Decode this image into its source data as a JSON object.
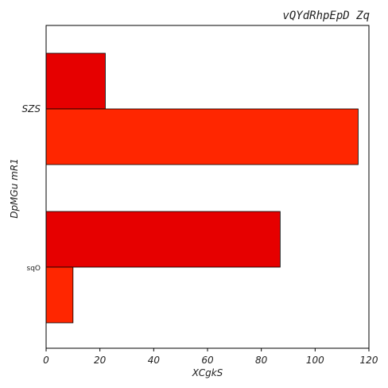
{
  "chart_data": {
    "type": "bar",
    "orientation": "horizontal",
    "title": "vQYdRhpEpD Zq",
    "xlabel": "XCgkS",
    "ylabel": "DpMGu  mR1",
    "categories": [
      "SZS",
      "sqO"
    ],
    "series": [
      {
        "color": "#e60000",
        "values": [
          22,
          87
        ]
      },
      {
        "color": "#ff2600",
        "values": [
          116,
          10
        ]
      }
    ],
    "xlim": [
      0,
      120
    ],
    "xticks": [
      0,
      20,
      40,
      60,
      80,
      100,
      120
    ],
    "xtick_labels": [
      "0",
      "20",
      "40",
      "60",
      "80",
      "100",
      "120"
    ],
    "grid": false,
    "legend": "none"
  }
}
